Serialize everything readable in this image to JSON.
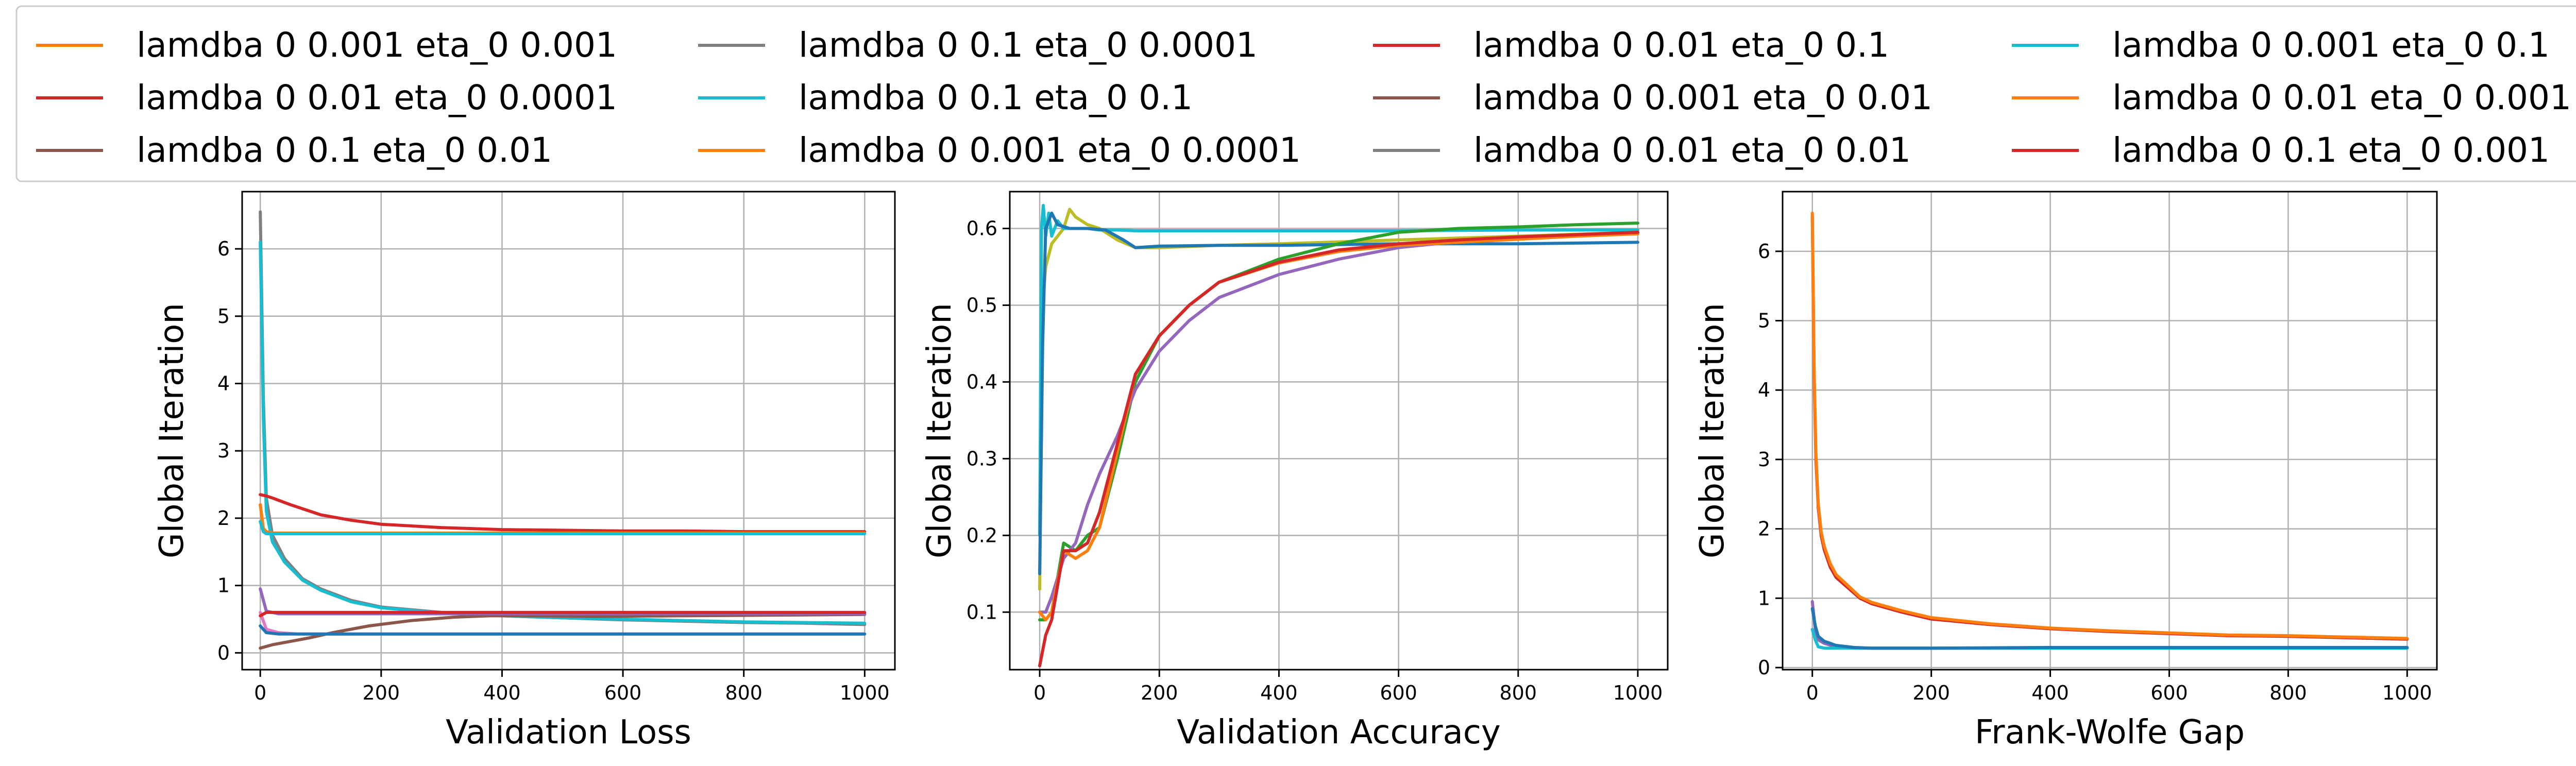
{
  "legend": {
    "placement": "top",
    "columns": 4,
    "entries": [
      {
        "label": "lamdba 0 0.001 eta_0 0.001",
        "color": "#ff7f0e"
      },
      {
        "label": "lamdba 0 0.01 eta_0 0.0001",
        "color": "#d62728"
      },
      {
        "label": "lamdba 0 0.1 eta_0 0.01",
        "color": "#8c564b"
      },
      {
        "label": "lamdba 0 0.1 eta_0 0.0001",
        "color": "#7f7f7f"
      },
      {
        "label": "lamdba 0 0.1 eta_0 0.1",
        "color": "#17becf"
      },
      {
        "label": "lamdba 0 0.001 eta_0 0.0001",
        "color": "#ff7f0e"
      },
      {
        "label": "lamdba 0 0.01 eta_0 0.1",
        "color": "#d62728"
      },
      {
        "label": "lamdba 0 0.001 eta_0 0.01",
        "color": "#8c564b"
      },
      {
        "label": "lamdba 0 0.01 eta_0 0.01",
        "color": "#7f7f7f"
      },
      {
        "label": "lamdba 0 0.001 eta_0 0.1",
        "color": "#17becf"
      },
      {
        "label": "lamdba 0 0.01 eta_0 0.001",
        "color": "#ff7f0e"
      },
      {
        "label": "lamdba 0 0.1 eta_0 0.001",
        "color": "#d62728"
      }
    ]
  },
  "chart_data": [
    {
      "type": "line",
      "xlabel": "Validation Loss",
      "ylabel": "Global Iteration",
      "xlim": [
        -30,
        1050
      ],
      "ylim": [
        -0.25,
        6.85
      ],
      "xticks": [
        0,
        200,
        400,
        600,
        800,
        1000
      ],
      "yticks": [
        0,
        1,
        2,
        3,
        4,
        5,
        6
      ],
      "grid": true,
      "series": [
        {
          "color": "#7f7f7f",
          "x": [
            0,
            5,
            10,
            20,
            40,
            70,
            100,
            150,
            200,
            300,
            400,
            500,
            600,
            700,
            800,
            900,
            1000
          ],
          "y": [
            6.55,
            3.8,
            2.3,
            1.75,
            1.4,
            1.1,
            0.95,
            0.78,
            0.68,
            0.6,
            0.55,
            0.52,
            0.49,
            0.47,
            0.45,
            0.44,
            0.42
          ]
        },
        {
          "color": "#17becf",
          "x": [
            0,
            5,
            10,
            20,
            40,
            70,
            100,
            150,
            200,
            300,
            400,
            500,
            600,
            700,
            800,
            900,
            1000
          ],
          "y": [
            6.1,
            3.5,
            2.1,
            1.65,
            1.35,
            1.08,
            0.93,
            0.76,
            0.67,
            0.59,
            0.55,
            0.52,
            0.5,
            0.48,
            0.46,
            0.45,
            0.44
          ]
        },
        {
          "color": "#d62728",
          "x": [
            0,
            10,
            20,
            50,
            100,
            150,
            200,
            300,
            400,
            500,
            600,
            700,
            800,
            900,
            1000
          ],
          "y": [
            2.35,
            2.33,
            2.3,
            2.2,
            2.05,
            1.97,
            1.91,
            1.86,
            1.83,
            1.82,
            1.81,
            1.81,
            1.8,
            1.8,
            1.8
          ]
        },
        {
          "color": "#ff7f0e",
          "x": [
            0,
            5,
            10,
            20,
            50,
            100,
            200,
            400,
            600,
            800,
            1000
          ],
          "y": [
            2.2,
            1.85,
            1.8,
            1.78,
            1.78,
            1.78,
            1.78,
            1.78,
            1.78,
            1.78,
            1.78
          ]
        },
        {
          "color": "#17becf",
          "x": [
            0,
            5,
            10,
            20,
            50,
            100,
            200,
            400,
            600,
            800,
            1000
          ],
          "y": [
            1.95,
            1.8,
            1.77,
            1.77,
            1.77,
            1.77,
            1.77,
            1.77,
            1.77,
            1.77,
            1.77
          ]
        },
        {
          "color": "#8c564b",
          "x": [
            0,
            20,
            50,
            80,
            120,
            180,
            250,
            320,
            380,
            450,
            550,
            700,
            850,
            1000
          ],
          "y": [
            0.07,
            0.12,
            0.17,
            0.22,
            0.3,
            0.4,
            0.48,
            0.53,
            0.55,
            0.55,
            0.54,
            0.55,
            0.56,
            0.57
          ]
        },
        {
          "color": "#9467bd",
          "x": [
            0,
            10,
            30,
            60,
            100,
            200,
            400,
            600,
            800,
            1000
          ],
          "y": [
            0.95,
            0.62,
            0.58,
            0.58,
            0.58,
            0.58,
            0.58,
            0.58,
            0.58,
            0.58
          ]
        },
        {
          "color": "#e377c2",
          "x": [
            0,
            10,
            30,
            60,
            100,
            200,
            400,
            600,
            800,
            1000
          ],
          "y": [
            0.6,
            0.35,
            0.3,
            0.28,
            0.28,
            0.28,
            0.28,
            0.28,
            0.28,
            0.28
          ]
        },
        {
          "color": "#d62728",
          "x": [
            0,
            10,
            20,
            50,
            100,
            200,
            400,
            600,
            800,
            1000
          ],
          "y": [
            0.55,
            0.6,
            0.6,
            0.6,
            0.6,
            0.6,
            0.6,
            0.6,
            0.6,
            0.6
          ]
        },
        {
          "color": "#1f77b4",
          "x": [
            0,
            10,
            30,
            60,
            100,
            200,
            400,
            600,
            800,
            1000
          ],
          "y": [
            0.4,
            0.3,
            0.28,
            0.28,
            0.28,
            0.28,
            0.28,
            0.28,
            0.28,
            0.28
          ]
        }
      ]
    },
    {
      "type": "line",
      "xlabel": "Validation Accuracy",
      "ylabel": "Global Iteration",
      "xlim": [
        -50,
        1050
      ],
      "ylim": [
        0.025,
        0.648
      ],
      "xticks": [
        0,
        200,
        400,
        600,
        800,
        1000
      ],
      "yticks": [
        0.1,
        0.2,
        0.3,
        0.4,
        0.5,
        0.6
      ],
      "grid": true,
      "series": [
        {
          "color": "#bcbd22",
          "x": [
            0,
            5,
            10,
            20,
            30,
            40,
            50,
            60,
            80,
            100,
            130,
            160,
            200,
            300,
            400,
            600,
            800,
            1000
          ],
          "y": [
            0.13,
            0.5,
            0.55,
            0.58,
            0.59,
            0.6,
            0.625,
            0.615,
            0.605,
            0.6,
            0.585,
            0.575,
            0.575,
            0.578,
            0.58,
            0.585,
            0.59,
            0.595
          ]
        },
        {
          "color": "#17becf",
          "x": [
            0,
            3,
            6,
            10,
            15,
            20,
            30,
            40,
            60,
            80,
            100,
            130,
            160,
            200,
            300,
            400,
            600,
            800,
            1000
          ],
          "y": [
            0.2,
            0.6,
            0.63,
            0.59,
            0.62,
            0.59,
            0.61,
            0.6,
            0.6,
            0.6,
            0.598,
            0.598,
            0.597,
            0.597,
            0.597,
            0.597,
            0.597,
            0.598,
            0.598
          ]
        },
        {
          "color": "#1f77b4",
          "x": [
            0,
            5,
            10,
            20,
            30,
            50,
            80,
            110,
            140,
            160,
            200,
            300,
            400,
            600,
            800,
            1000
          ],
          "y": [
            0.15,
            0.45,
            0.6,
            0.62,
            0.605,
            0.6,
            0.6,
            0.598,
            0.585,
            0.575,
            0.577,
            0.578,
            0.578,
            0.58,
            0.58,
            0.582
          ]
        },
        {
          "color": "#2ca02c",
          "x": [
            0,
            10,
            20,
            40,
            60,
            80,
            100,
            130,
            160,
            200,
            250,
            300,
            400,
            500,
            600,
            700,
            800,
            900,
            1000
          ],
          "y": [
            0.09,
            0.09,
            0.1,
            0.19,
            0.18,
            0.2,
            0.21,
            0.3,
            0.4,
            0.46,
            0.5,
            0.53,
            0.56,
            0.58,
            0.595,
            0.6,
            0.602,
            0.605,
            0.607
          ]
        },
        {
          "color": "#9467bd",
          "x": [
            0,
            10,
            20,
            40,
            60,
            80,
            100,
            130,
            160,
            200,
            250,
            300,
            400,
            500,
            600,
            700,
            800,
            900,
            1000
          ],
          "y": [
            0.1,
            0.1,
            0.12,
            0.17,
            0.19,
            0.24,
            0.28,
            0.33,
            0.39,
            0.44,
            0.48,
            0.51,
            0.54,
            0.56,
            0.575,
            0.583,
            0.588,
            0.592,
            0.595
          ]
        },
        {
          "color": "#ff7f0e",
          "x": [
            0,
            10,
            20,
            40,
            60,
            80,
            100,
            130,
            160,
            200,
            250,
            300,
            400,
            500,
            600,
            700,
            800,
            900,
            1000
          ],
          "y": [
            0.1,
            0.09,
            0.1,
            0.18,
            0.17,
            0.18,
            0.21,
            0.31,
            0.41,
            0.46,
            0.5,
            0.53,
            0.555,
            0.57,
            0.578,
            0.582,
            0.586,
            0.59,
            0.593
          ]
        },
        {
          "color": "#d62728",
          "x": [
            0,
            10,
            20,
            40,
            60,
            80,
            100,
            130,
            160,
            200,
            250,
            300,
            400,
            500,
            600,
            700,
            800,
            900,
            1000
          ],
          "y": [
            0.03,
            0.07,
            0.09,
            0.18,
            0.18,
            0.19,
            0.23,
            0.32,
            0.41,
            0.46,
            0.5,
            0.53,
            0.556,
            0.572,
            0.58,
            0.585,
            0.589,
            0.592,
            0.595
          ]
        }
      ]
    },
    {
      "type": "line",
      "xlabel": "Frank-Wolfe Gap",
      "ylabel": "Global Iteration",
      "xlim": [
        -50,
        1050
      ],
      "ylim": [
        -0.03,
        6.86
      ],
      "xticks": [
        0,
        200,
        400,
        600,
        800,
        1000
      ],
      "yticks": [
        0,
        1,
        2,
        3,
        4,
        5,
        6
      ],
      "grid": true,
      "series": [
        {
          "color": "#d62728",
          "x": [
            0,
            3,
            6,
            10,
            15,
            20,
            30,
            40,
            60,
            80,
            100,
            150,
            200,
            300,
            400,
            500,
            600,
            700,
            800,
            900,
            1000
          ],
          "y": [
            6.5,
            4.2,
            3.0,
            2.3,
            1.9,
            1.7,
            1.45,
            1.3,
            1.15,
            1.0,
            0.92,
            0.8,
            0.7,
            0.62,
            0.56,
            0.52,
            0.49,
            0.46,
            0.45,
            0.43,
            0.41
          ]
        },
        {
          "color": "#ff7f0e",
          "x": [
            0,
            3,
            6,
            10,
            15,
            20,
            30,
            40,
            60,
            80,
            100,
            150,
            200,
            300,
            400,
            500,
            600,
            700,
            800,
            900,
            1000
          ],
          "y": [
            6.55,
            4.3,
            3.1,
            2.35,
            1.95,
            1.75,
            1.5,
            1.34,
            1.18,
            1.02,
            0.94,
            0.82,
            0.72,
            0.63,
            0.57,
            0.53,
            0.5,
            0.47,
            0.46,
            0.44,
            0.42
          ]
        },
        {
          "color": "#9467bd",
          "x": [
            0,
            5,
            10,
            20,
            40,
            70,
            100,
            150,
            200,
            400,
            600,
            800,
            1000
          ],
          "y": [
            0.95,
            0.55,
            0.4,
            0.35,
            0.3,
            0.28,
            0.28,
            0.28,
            0.28,
            0.28,
            0.28,
            0.28,
            0.28
          ]
        },
        {
          "color": "#17becf",
          "x": [
            0,
            5,
            10,
            20,
            40,
            70,
            100,
            150,
            200,
            400,
            600,
            800,
            1000
          ],
          "y": [
            0.55,
            0.4,
            0.3,
            0.28,
            0.28,
            0.28,
            0.28,
            0.28,
            0.28,
            0.28,
            0.28,
            0.28,
            0.28
          ]
        },
        {
          "color": "#1f77b4",
          "x": [
            0,
            5,
            10,
            20,
            40,
            70,
            100,
            150,
            200,
            400,
            600,
            800,
            1000
          ],
          "y": [
            0.85,
            0.6,
            0.45,
            0.38,
            0.32,
            0.29,
            0.28,
            0.28,
            0.28,
            0.29,
            0.29,
            0.29,
            0.29
          ]
        }
      ]
    }
  ]
}
